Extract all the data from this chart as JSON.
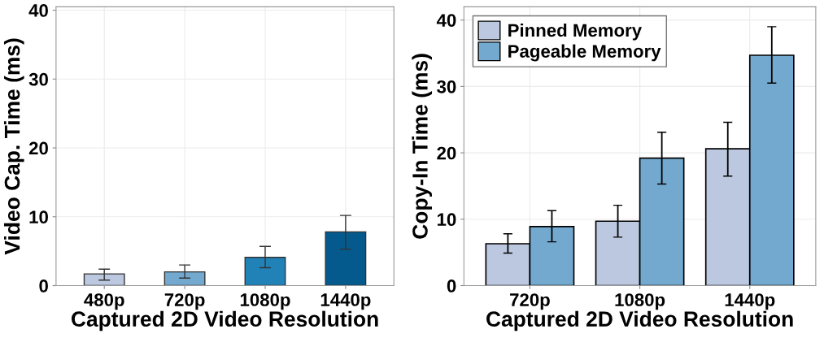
{
  "chart_data": [
    {
      "type": "bar",
      "xlabel": "Captured 2D Video Resolution",
      "ylabel": "Video Cap. Time (ms)",
      "categories": [
        "480p",
        "720p",
        "1080p",
        "1440p"
      ],
      "values": [
        1.7,
        2.0,
        4.1,
        7.8
      ],
      "colors": [
        "#bcc8e0",
        "#74a9cf",
        "#2182b8",
        "#045a8d"
      ],
      "errors": [
        [
          0.8,
          2.4
        ],
        [
          1.1,
          3.0
        ],
        [
          2.6,
          5.7
        ],
        [
          5.3,
          10.2
        ]
      ],
      "ylim": [
        0,
        40.5
      ],
      "yticks": [
        0,
        10,
        20,
        30,
        40
      ],
      "grid": true
    },
    {
      "type": "bar",
      "xlabel": "Captured 2D Video Resolution",
      "ylabel": "Copy-In Time (ms)",
      "categories": [
        "720p",
        "1080p",
        "1440p"
      ],
      "series": [
        {
          "name": "Pinned Memory",
          "color": "#bcc8e0",
          "values": [
            6.3,
            9.7,
            20.6
          ],
          "errors": [
            [
              4.9,
              7.8
            ],
            [
              7.3,
              12.1
            ],
            [
              16.5,
              24.6
            ]
          ]
        },
        {
          "name": "Pageable Memory",
          "color": "#74a9cf",
          "values": [
            8.9,
            19.2,
            34.7
          ],
          "errors": [
            [
              6.6,
              11.3
            ],
            [
              15.3,
              23.1
            ],
            [
              30.5,
              39.0
            ]
          ]
        }
      ],
      "ylim": [
        0,
        42
      ],
      "yticks": [
        0,
        10,
        20,
        30,
        40
      ],
      "grid": true,
      "legend": "top left"
    }
  ]
}
